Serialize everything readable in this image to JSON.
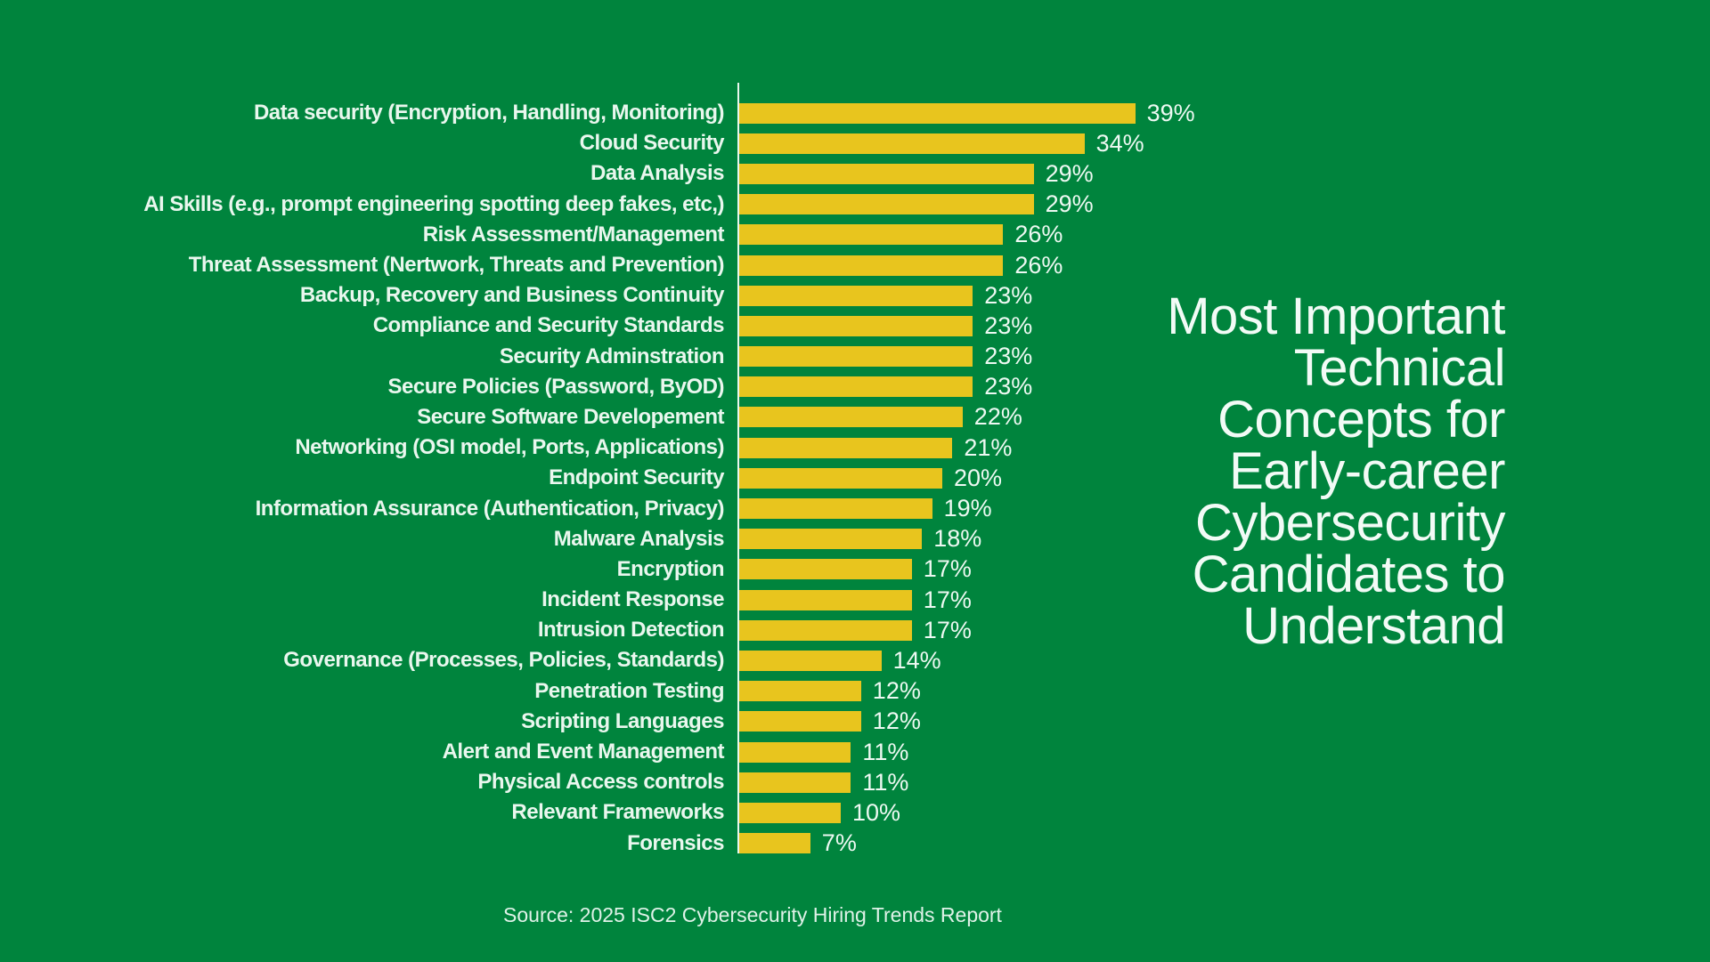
{
  "chart_data": {
    "type": "bar",
    "orientation": "horizontal",
    "title": "Most Important Technical Concepts for Early-career Cybersecurity Candidates to Understand",
    "title_lines": [
      "Most Important",
      "Technical",
      "Concepts for",
      "Early-career",
      "Cybersecurity",
      "Candidates to",
      "Understand"
    ],
    "source": "Source: 2025 ISC2 Cybersecurity Hiring Trends Report",
    "value_suffix": "%",
    "xlim": [
      0,
      40
    ],
    "grid": false,
    "legend": false,
    "categories": [
      "Data security (Encryption, Handling, Monitoring)",
      "Cloud Security",
      "Data Analysis",
      "AI Skills (e.g., prompt engineering spotting deep fakes, etc,)",
      "Risk Assessment/Management",
      "Threat Assessment (Nertwork, Threats and Prevention)",
      "Backup, Recovery and Business Continuity",
      "Compliance and Security Standards",
      "Security Adminstration",
      "Secure Policies (Password, ByOD)",
      "Secure Software Developement",
      "Networking (OSI model, Ports, Applications)",
      "Endpoint Security",
      "Information Assurance (Authentication, Privacy)",
      "Malware Analysis",
      "Encryption",
      "Incident Response",
      "Intrusion Detection",
      "Governance (Processes, Policies, Standards)",
      "Penetration Testing",
      "Scripting Languages",
      "Alert and Event Management",
      "Physical Access controls",
      "Relevant Frameworks",
      "Forensics"
    ],
    "values": [
      39,
      34,
      29,
      29,
      26,
      26,
      23,
      23,
      23,
      23,
      22,
      21,
      20,
      19,
      18,
      17,
      17,
      17,
      14,
      12,
      12,
      11,
      11,
      10,
      7
    ],
    "colors": {
      "background": "#00843D",
      "bar": "#E8C51E",
      "label_text": "#E9F7EE",
      "value_text": "#EDF9F2",
      "title_text": "#F2FBF6",
      "axis_line": "#E9F7EE"
    }
  }
}
